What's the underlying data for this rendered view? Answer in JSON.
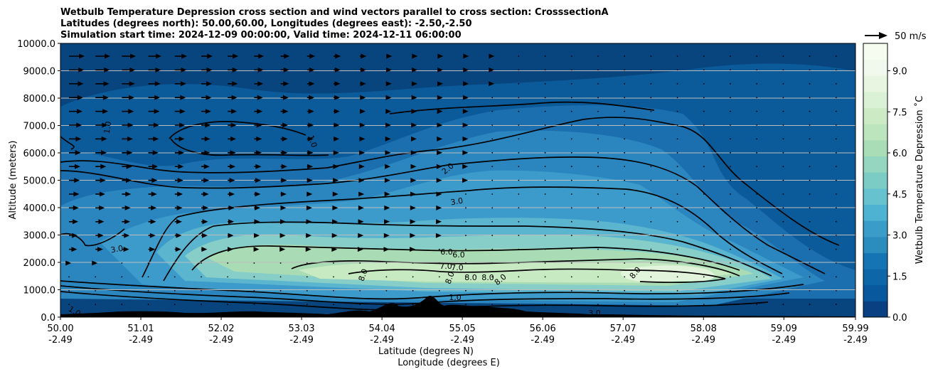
{
  "chart_data": {
    "type": "contour",
    "title_lines": [
      "Wetbulb Temperature Depression cross section and wind vectors parallel to cross section: CrosssectionA",
      "Latitudes (degrees north): 50.00,60.00, Longitudes (degrees east): -2.50,-2.50",
      "Simulation start time: 2024-12-09 00:00:00, Valid time: 2024-12-11 06:00:00"
    ],
    "ylabel": "Altitude (meters)",
    "xlabel": "Latitude (degrees N)",
    "xlabel2": "Longitude (degrees E)",
    "ylim": [
      0,
      10000
    ],
    "xlim": [
      50.0,
      59.99
    ],
    "y_ticks": [
      "0.0",
      "1000.0",
      "2000.0",
      "3000.0",
      "4000.0",
      "5000.0",
      "6000.0",
      "7000.0",
      "8000.0",
      "9000.0",
      "10000.0"
    ],
    "x_ticks": [
      {
        "lat": "50.00",
        "lon": "-2.49"
      },
      {
        "lat": "51.01",
        "lon": "-2.49"
      },
      {
        "lat": "52.02",
        "lon": "-2.49"
      },
      {
        "lat": "53.03",
        "lon": "-2.49"
      },
      {
        "lat": "54.04",
        "lon": "-2.49"
      },
      {
        "lat": "55.05",
        "lon": "-2.49"
      },
      {
        "lat": "56.06",
        "lon": "-2.49"
      },
      {
        "lat": "57.07",
        "lon": "-2.49"
      },
      {
        "lat": "58.08",
        "lon": "-2.49"
      },
      {
        "lat": "59.09",
        "lon": "-2.49"
      },
      {
        "lat": "59.99",
        "lon": "-2.49"
      }
    ],
    "colorbar": {
      "label": "Wetbulb Temperature Depression ˚C",
      "range": [
        0,
        10
      ],
      "ticks": [
        "0.0",
        "1.5",
        "3.0",
        "4.5",
        "6.0",
        "7.5",
        "9.0"
      ]
    },
    "quiver_key": "50 m/s",
    "contour_labels": [
      "1.0",
      "1.0",
      "2.0",
      "3.0",
      "3.0",
      "6.0",
      "6.0",
      "7.0",
      "7.0",
      "8.0",
      "8.0",
      "8.0",
      "8.0",
      "8.0",
      "8.0",
      "1.0",
      "1.0",
      "3.0"
    ]
  }
}
